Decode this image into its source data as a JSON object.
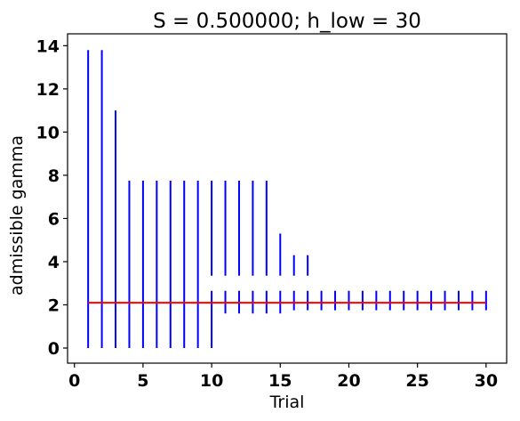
{
  "chart_data": {
    "type": "errorbar",
    "title": "S = 0.500000; h_low = 30",
    "xlabel": "Trial",
    "ylabel": "admissible gamma",
    "xlim": [
      -0.5,
      31.5
    ],
    "ylim": [
      -0.7,
      14.55
    ],
    "xticks": [
      0,
      5,
      10,
      15,
      20,
      25,
      30
    ],
    "yticks": [
      0,
      2,
      4,
      6,
      8,
      10,
      12,
      14
    ],
    "grid": false,
    "interval_color": "#0000ff",
    "reference_color": "#ff0000",
    "reference_line": {
      "y": 2.1,
      "x": [
        1,
        30
      ]
    },
    "intervals": [
      {
        "trial": 1,
        "low": 0.0,
        "high": 13.8
      },
      {
        "trial": 2,
        "low": 0.0,
        "high": 13.8
      },
      {
        "trial": 3,
        "low": 0.0,
        "high": 11.0
      },
      {
        "trial": 4,
        "low": 0.0,
        "high": 7.75
      },
      {
        "trial": 5,
        "low": 0.0,
        "high": 7.75
      },
      {
        "trial": 6,
        "low": 0.0,
        "high": 7.75
      },
      {
        "trial": 7,
        "low": 0.0,
        "high": 7.75
      },
      {
        "trial": 8,
        "low": 0.0,
        "high": 7.75
      },
      {
        "trial": 9,
        "low": 0.0,
        "high": 7.75
      },
      {
        "trial": 10,
        "low": 0.0,
        "high": 2.65
      },
      {
        "trial": 10,
        "low": 3.35,
        "high": 7.75
      },
      {
        "trial": 11,
        "low": 1.6,
        "high": 2.65
      },
      {
        "trial": 11,
        "low": 3.35,
        "high": 7.75
      },
      {
        "trial": 12,
        "low": 1.6,
        "high": 2.65
      },
      {
        "trial": 12,
        "low": 3.35,
        "high": 7.75
      },
      {
        "trial": 13,
        "low": 1.6,
        "high": 2.65
      },
      {
        "trial": 13,
        "low": 3.35,
        "high": 7.75
      },
      {
        "trial": 14,
        "low": 1.6,
        "high": 2.65
      },
      {
        "trial": 14,
        "low": 3.35,
        "high": 7.75
      },
      {
        "trial": 15,
        "low": 1.6,
        "high": 2.65
      },
      {
        "trial": 15,
        "low": 3.35,
        "high": 5.3
      },
      {
        "trial": 16,
        "low": 1.75,
        "high": 2.65
      },
      {
        "trial": 16,
        "low": 3.35,
        "high": 4.3
      },
      {
        "trial": 17,
        "low": 1.75,
        "high": 2.65
      },
      {
        "trial": 17,
        "low": 3.35,
        "high": 4.3
      },
      {
        "trial": 18,
        "low": 1.75,
        "high": 2.65
      },
      {
        "trial": 19,
        "low": 1.75,
        "high": 2.65
      },
      {
        "trial": 20,
        "low": 1.75,
        "high": 2.65
      },
      {
        "trial": 21,
        "low": 1.75,
        "high": 2.65
      },
      {
        "trial": 22,
        "low": 1.75,
        "high": 2.65
      },
      {
        "trial": 23,
        "low": 1.75,
        "high": 2.65
      },
      {
        "trial": 24,
        "low": 1.75,
        "high": 2.65
      },
      {
        "trial": 25,
        "low": 1.75,
        "high": 2.65
      },
      {
        "trial": 26,
        "low": 1.75,
        "high": 2.65
      },
      {
        "trial": 27,
        "low": 1.75,
        "high": 2.65
      },
      {
        "trial": 28,
        "low": 1.75,
        "high": 2.65
      },
      {
        "trial": 29,
        "low": 1.75,
        "high": 2.65
      },
      {
        "trial": 30,
        "low": 1.75,
        "high": 2.65
      }
    ]
  }
}
